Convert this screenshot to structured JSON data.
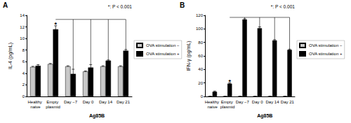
{
  "chart_data": [
    {
      "panel": "A",
      "type": "bar",
      "y_label": "IL-4 (pg/mL)",
      "categories": [
        "Healthy naive",
        "Empty plasmid",
        "Day −7",
        "Day 0",
        "Day 14",
        "Day 21"
      ],
      "group_label": "Ag85B",
      "group_categories": [
        "Day −7",
        "Day 0",
        "Day 14",
        "Day 21"
      ],
      "series": [
        {
          "name": "OVA stimulation −",
          "color": "#c8c8c8",
          "values": [
            5.1,
            5.6,
            5.2,
            4.3,
            5.2,
            5.2
          ],
          "errors": [
            0.1,
            0.1,
            0.1,
            0.1,
            0.1,
            0.1
          ]
        },
        {
          "name": "OVA stimulation +",
          "color": "#000000",
          "values": [
            5.3,
            11.6,
            3.9,
            5.0,
            6.2,
            7.9
          ],
          "errors": [
            0.2,
            0.6,
            0.8,
            0.5,
            0.1,
            0.2
          ]
        }
      ],
      "ylim": [
        0,
        14
      ],
      "yticks": [
        0,
        2,
        4,
        6,
        8,
        10,
        12,
        14
      ],
      "grid": false,
      "legend": "right",
      "significance": {
        "label": "*: P < 0.001",
        "mark": "*",
        "marked": "Empty plasmid",
        "compared": [
          "Day −7",
          "Day 0",
          "Day 14",
          "Day 21"
        ],
        "bracket_y": 13.3,
        "mark_y": 12.4
      }
    },
    {
      "panel": "B",
      "type": "bar",
      "y_label": "IFN-γ (pg/mL)",
      "categories": [
        "Healthy naive",
        "Empty plasmid",
        "Day −7",
        "Day 0",
        "Day 14",
        "Day 21"
      ],
      "group_label": "Ag85B",
      "group_categories": [
        "Day −7",
        "Day 0",
        "Day 14",
        "Day 21"
      ],
      "series": [
        {
          "name": "OVA stimulation −",
          "color": "#c8c8c8",
          "values": [
            0,
            0,
            0,
            0,
            0,
            0
          ],
          "errors": [
            0,
            0,
            0,
            0,
            0,
            0
          ]
        },
        {
          "name": "OVA stimulation +",
          "color": "#000000",
          "values": [
            7,
            19,
            114,
            101,
            83,
            69
          ],
          "errors": [
            1,
            1,
            1,
            2,
            1,
            1
          ]
        }
      ],
      "ylim": [
        0,
        120
      ],
      "yticks": [
        0,
        20,
        40,
        60,
        80,
        100,
        120
      ],
      "grid": false,
      "legend": "right",
      "significance": {
        "label": "*: P < 0.001",
        "mark": "*",
        "marked": "Empty plasmid",
        "compared": [
          "Day −7",
          "Day 0",
          "Day 14",
          "Day 21"
        ],
        "bracket_y": 117,
        "mark_y": 22
      }
    }
  ]
}
